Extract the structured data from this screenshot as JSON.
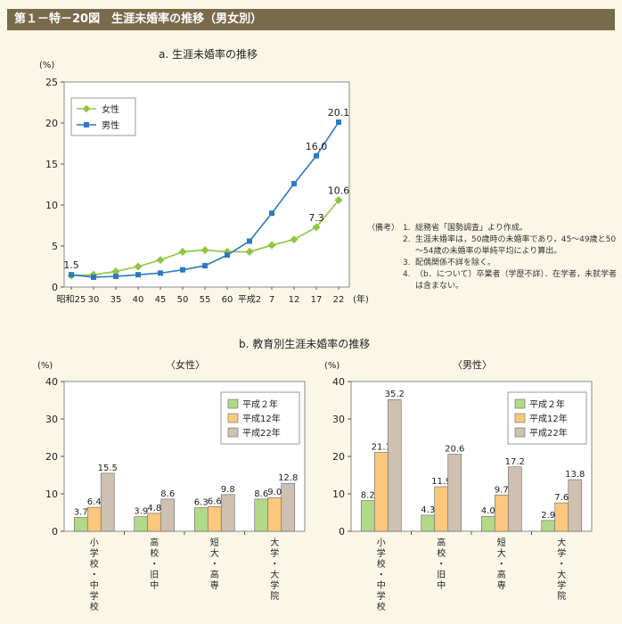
{
  "header": {
    "title": "第１－特－20図　生涯未婚率の推移（男女別）"
  },
  "chart_data": [
    {
      "type": "line",
      "title": "a.  生涯未婚率の推移",
      "ylabel": "(%)",
      "xunit": "(年)",
      "ylim": [
        0,
        25
      ],
      "yticks": [
        0,
        5,
        10,
        15,
        20,
        25
      ],
      "categories": [
        "昭和25",
        "30",
        "35",
        "40",
        "45",
        "50",
        "55",
        "60",
        "平成2",
        "7",
        "12",
        "17",
        "22"
      ],
      "series": [
        {
          "name": "女性",
          "color": "#8dc63f",
          "values": [
            1.4,
            1.5,
            1.9,
            2.5,
            3.3,
            4.3,
            4.5,
            4.3,
            4.3,
            5.1,
            5.8,
            7.3,
            10.6
          ]
        },
        {
          "name": "男性",
          "color": "#2b79c2",
          "values": [
            1.5,
            1.2,
            1.3,
            1.5,
            1.7,
            2.1,
            2.6,
            3.9,
            5.6,
            9.0,
            12.6,
            16.0,
            20.1
          ]
        }
      ],
      "data_labels": [
        {
          "text": "1.5",
          "series": 1,
          "index": 0
        },
        {
          "text": "7.3",
          "series": 0,
          "index": 11
        },
        {
          "text": "10.6",
          "series": 0,
          "index": 12
        },
        {
          "text": "16.0",
          "series": 1,
          "index": 11
        },
        {
          "text": "20.1",
          "series": 1,
          "index": 12
        }
      ],
      "legend_position": "top-left"
    },
    {
      "type": "bar",
      "section_title": "b.  教育別生涯未婚率の推移",
      "title": "〈女性〉",
      "ylabel": "(%)",
      "ylim": [
        0,
        40
      ],
      "yticks": [
        0,
        10,
        20,
        30,
        40
      ],
      "categories": [
        "小学校・中学校",
        "高校・旧中",
        "短大・高専",
        "大学・大学院"
      ],
      "series": [
        {
          "name": "平成２年",
          "color": "#b2d98a",
          "values": [
            3.7,
            3.9,
            6.3,
            8.6
          ]
        },
        {
          "name": "平成12年",
          "color": "#fbc87e",
          "values": [
            6.4,
            4.8,
            6.6,
            9.0
          ]
        },
        {
          "name": "平成22年",
          "color": "#cfc1b1",
          "values": [
            15.5,
            8.6,
            9.8,
            12.8
          ]
        }
      ],
      "legend_position": "top-right"
    },
    {
      "type": "bar",
      "title": "〈男性〉",
      "ylabel": "(%)",
      "ylim": [
        0,
        40
      ],
      "yticks": [
        0,
        10,
        20,
        30,
        40
      ],
      "categories": [
        "小学校・中学校",
        "高校・旧中",
        "短大・高専",
        "大学・大学院"
      ],
      "series": [
        {
          "name": "平成２年",
          "color": "#b2d98a",
          "values": [
            8.2,
            4.3,
            4.0,
            2.9
          ]
        },
        {
          "name": "平成12年",
          "color": "#fbc87e",
          "values": [
            21.1,
            11.9,
            9.7,
            7.6
          ]
        },
        {
          "name": "平成22年",
          "color": "#cfc1b1",
          "values": [
            35.2,
            20.6,
            17.2,
            13.8
          ]
        }
      ],
      "legend_position": "top-right"
    }
  ],
  "notes": {
    "label": "（備考）",
    "items": [
      {
        "num": "1.",
        "text": "総務省「国勢調査」より作成。"
      },
      {
        "num": "2.",
        "text": "生涯未婚率は，50歳時の未婚率であり，45～49歳と50～54歳の未婚率の単純平均により算出。"
      },
      {
        "num": "3.",
        "text": "配偶関係不詳を除く。"
      },
      {
        "num": "4.",
        "text": "（b．について）卒業者（学歴不詳）．在学者，未就学者は含まない。"
      }
    ]
  }
}
